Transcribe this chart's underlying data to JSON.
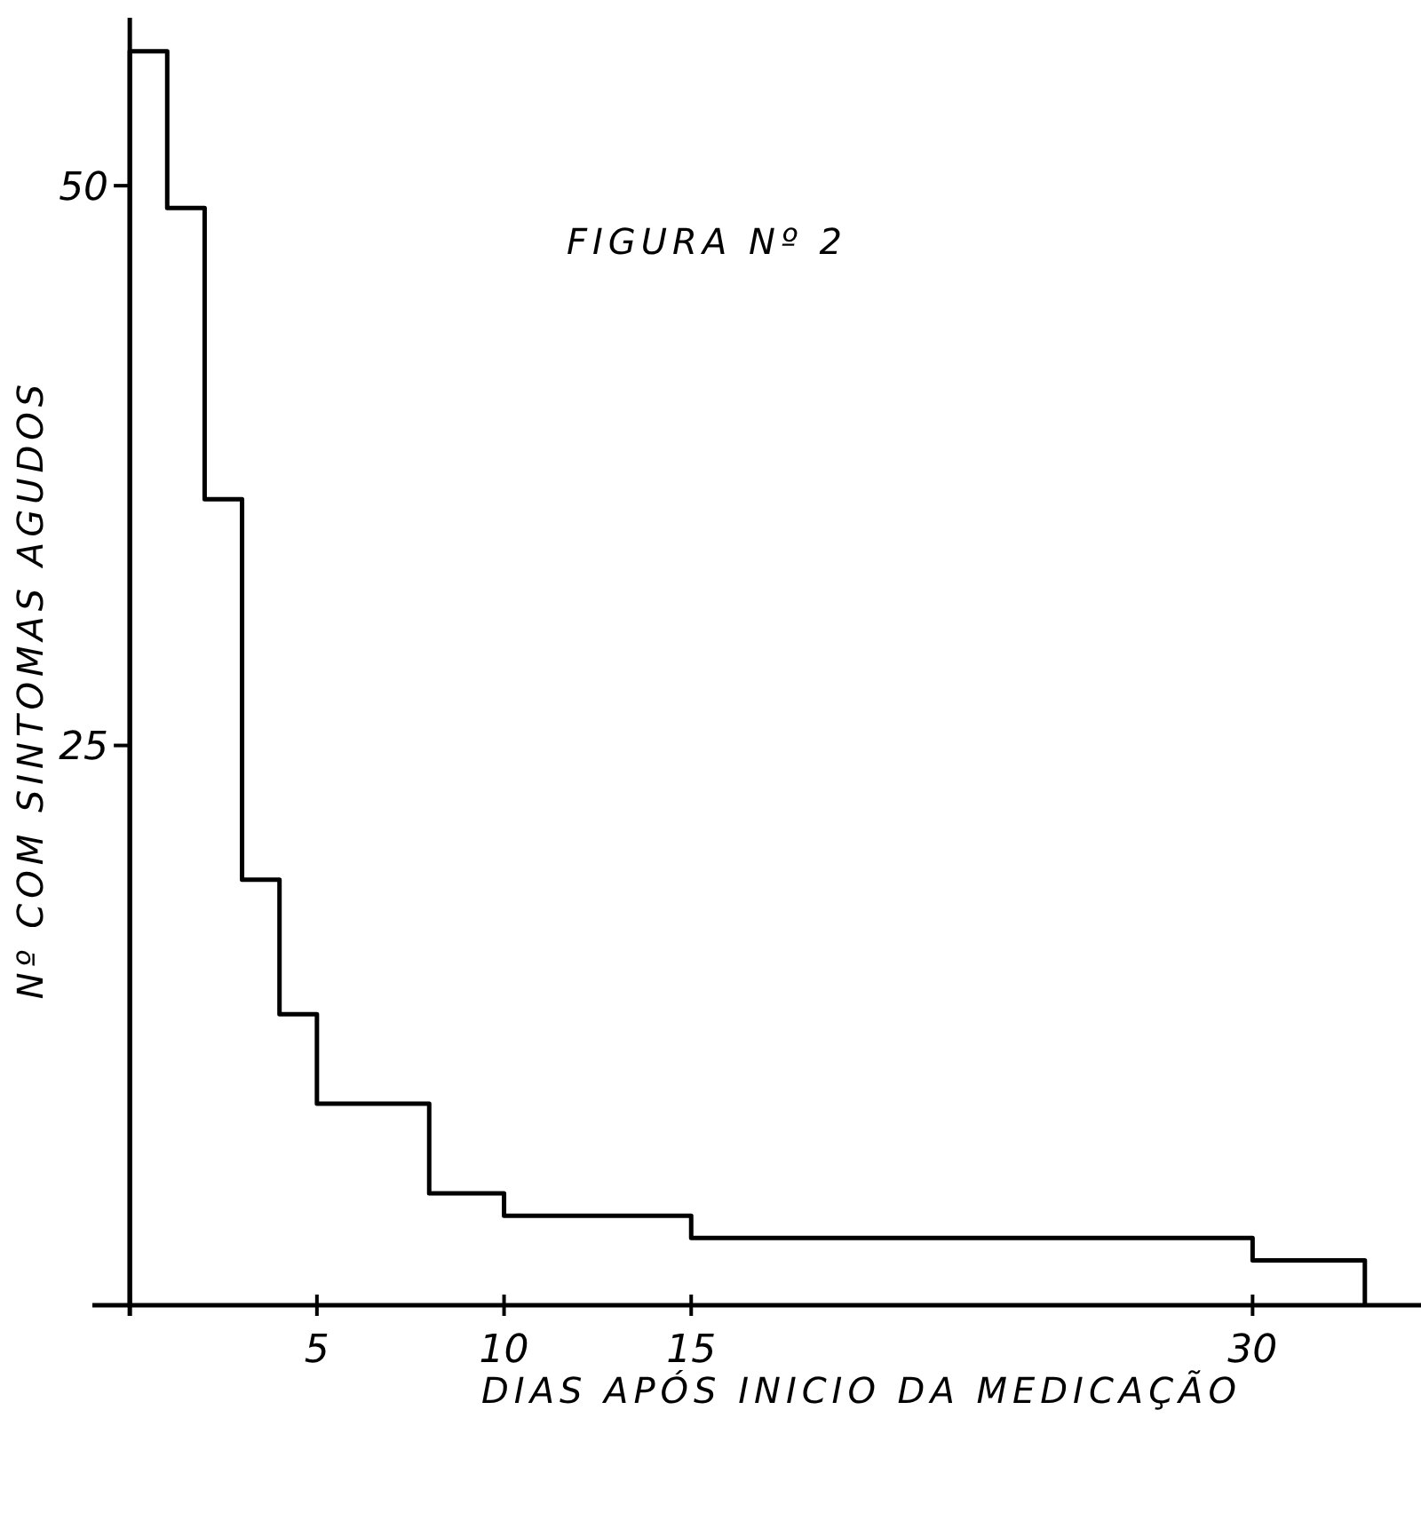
{
  "chart_data": {
    "type": "histogram",
    "title": "FIGURA Nº 2",
    "xlabel": "DIAS APÓS INICIO DA MEDICAÇÃO",
    "ylabel": "Nº COM SINTOMAS AGUDOS",
    "bins": [
      0,
      1,
      2,
      3,
      4,
      5,
      8,
      10,
      15,
      30,
      33
    ],
    "values": [
      56,
      49,
      36,
      19,
      13,
      9,
      5,
      4,
      3,
      2
    ],
    "color": "#000000",
    "xlim": [
      -1,
      34.5
    ],
    "ylim": [
      0,
      57.5
    ],
    "xticks": [
      {
        "value": 0,
        "label": null
      },
      5,
      10,
      15,
      30
    ],
    "yticks": [
      25,
      50
    ],
    "grid": false
  }
}
